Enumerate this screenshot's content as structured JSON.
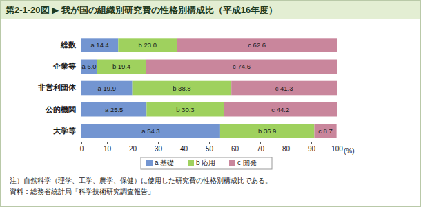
{
  "chart_data": {
    "type": "bar",
    "orientation": "horizontal",
    "stacked": true,
    "data_labels": true,
    "title": "第2-1-20図 ▶ 我が国の組織別研究費の性格別構成比（平成16年度）",
    "categories": [
      "総数",
      "企業等",
      "非営利団体",
      "公的機関",
      "大学等"
    ],
    "series": [
      {
        "name": "a 基礎",
        "color": "#7395d1",
        "values": [
          14.4,
          6.0,
          19.9,
          25.5,
          54.3
        ],
        "value_labels": [
          "a 14.4",
          "a 6.0",
          "a 19.9",
          "a 25.5",
          "a 54.3"
        ]
      },
      {
        "name": "b 応用",
        "color": "#9fd15e",
        "values": [
          23.0,
          19.4,
          38.8,
          30.3,
          36.9
        ],
        "value_labels": [
          "b 23.0",
          "b 19.4",
          "b 38.8",
          "b 30.3",
          "b 36.9"
        ]
      },
      {
        "name": "c 開発",
        "color": "#c9869c",
        "values": [
          62.6,
          74.6,
          41.3,
          44.2,
          8.7
        ],
        "value_labels": [
          "c 62.6",
          "c 74.6",
          "c 41.3",
          "c 44.2",
          "c 8.7"
        ]
      }
    ],
    "xlim": [
      0,
      100
    ],
    "xticks": [
      0,
      10,
      20,
      30,
      40,
      50,
      60,
      70,
      80,
      90,
      100
    ],
    "xlabel": "(%)",
    "legend": "bottom",
    "annotations": [
      "注）自然科学（理学、工学、農学、保健）に使用した研究費の性格別構成比である。",
      "資料：総務省統計局「科学技術研究調査報告」"
    ]
  }
}
